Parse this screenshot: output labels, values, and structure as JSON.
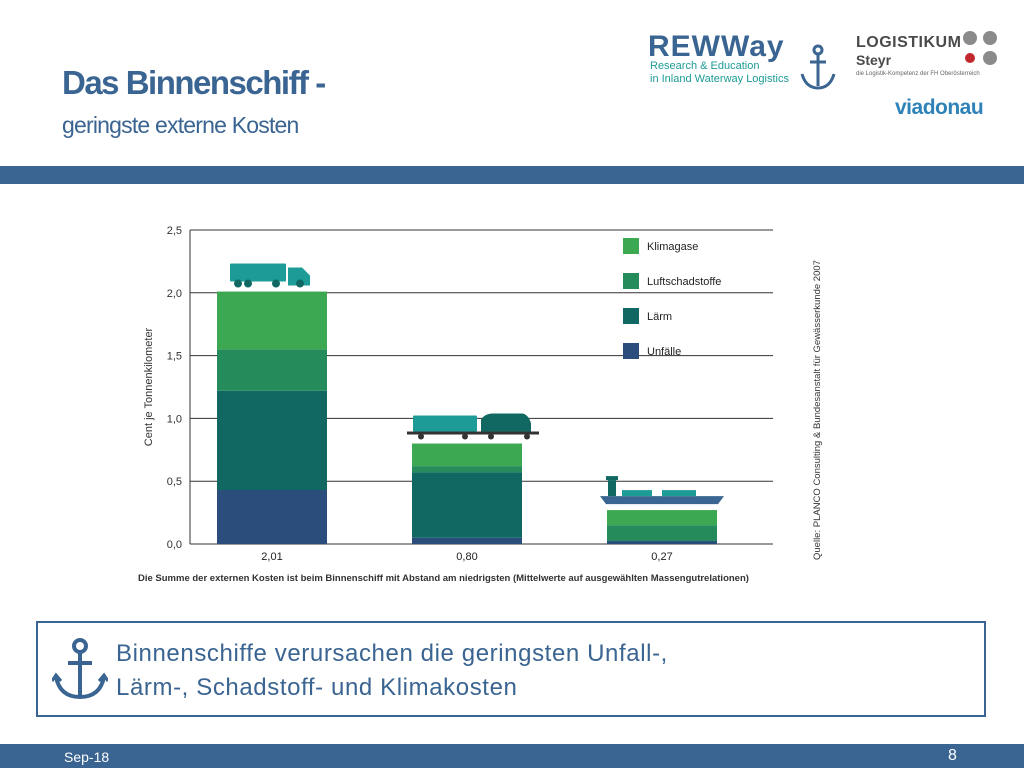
{
  "slide": {
    "title": "Das Binnenschiff -",
    "subtitle": "geringste externe Kosten",
    "date": "Sep-18",
    "page_number": "8"
  },
  "logos": {
    "rewway_name": "REWWay",
    "rewway_line1": "Research & Education",
    "rewway_line2": "in Inland Waterway Logistics",
    "logistikum_name": "LOGISTIKUM",
    "logistikum_city": "Steyr",
    "logistikum_tagline": "die Logistik-Kompetenz der FH Oberösterreich",
    "viadonau": "viadonau"
  },
  "callout": {
    "line1": "Binnenschiffe verursachen die geringsten Unfall-,",
    "line2": "Lärm-, Schadstoff- und Klimakosten"
  },
  "colors": {
    "brand_blue": "#3a6491",
    "teal": "#1d9b96"
  },
  "chart_data": {
    "type": "bar",
    "stacked": true,
    "categories": [
      "2,01",
      "0,80",
      "0,27"
    ],
    "category_icons": [
      "truck-icon",
      "train-icon",
      "ship-icon"
    ],
    "series": [
      {
        "name": "Unfälle",
        "color": "#2b4d7c",
        "values": [
          0.43,
          0.05,
          0.02
        ]
      },
      {
        "name": "Lärm",
        "color": "#116863",
        "values": [
          0.79,
          0.52,
          0.01
        ]
      },
      {
        "name": "Luftschadstoffe",
        "color": "#258b5a",
        "values": [
          0.33,
          0.05,
          0.12
        ]
      },
      {
        "name": "Klimagase",
        "color": "#3ca852",
        "values": [
          0.46,
          0.18,
          0.12
        ]
      }
    ],
    "ylabel": "Cent je Tonnenkilometer",
    "ylim": [
      0,
      2.5
    ],
    "yticks": [
      "0,0",
      "0,5",
      "1,0",
      "1,5",
      "2,0",
      "2,5"
    ],
    "ytick_values": [
      0,
      0.5,
      1.0,
      1.5,
      2.0,
      2.5
    ],
    "caption": "Die Summe der externen Kosten ist beim Binnenschiff mit Abstand am niedrigsten (Mittelwerte auf ausgewählten Massengutrelationen)",
    "source": "Quelle: PLANCO Consulting & Bundesanstalt für Gewässerkunde 2007",
    "legend_placement": "top-right",
    "grid": true
  }
}
